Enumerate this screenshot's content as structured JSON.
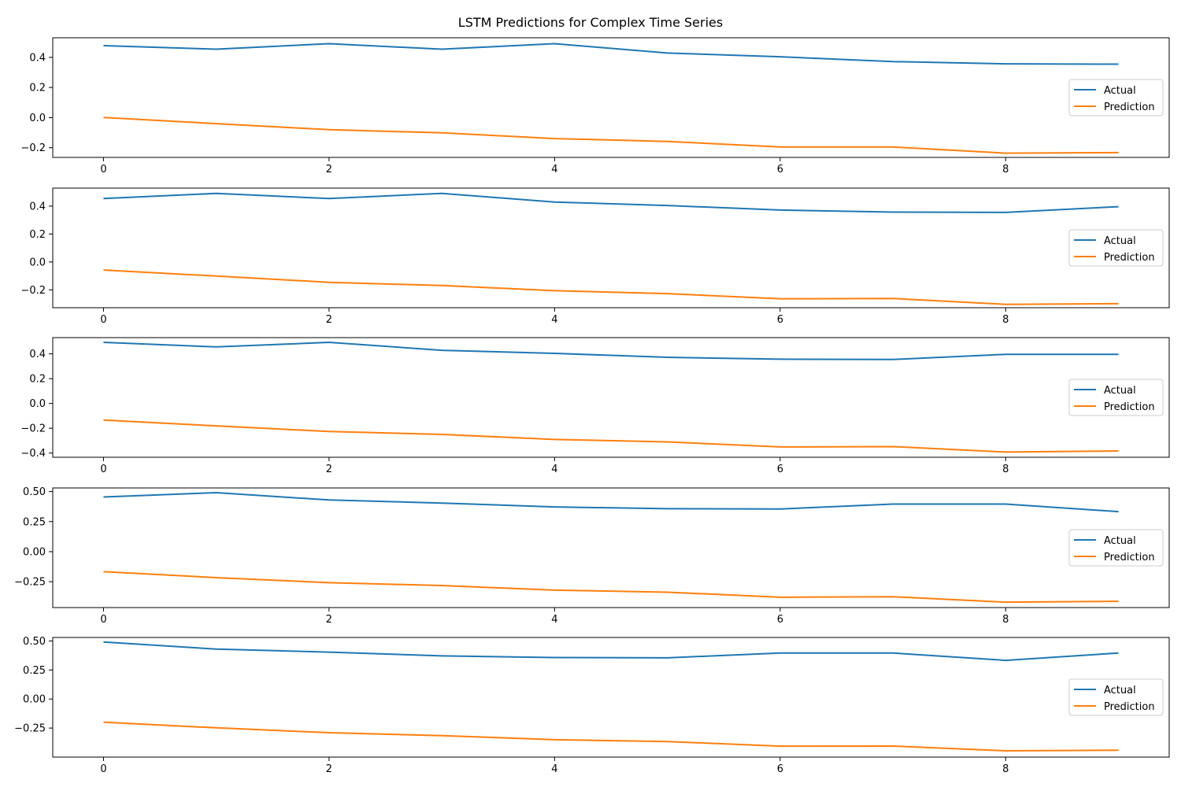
{
  "figure": {
    "title": "LSTM Predictions for Complex Time Series"
  },
  "colors": {
    "actual": "#1f77b4",
    "prediction": "#ff7f0e",
    "axes": "#000000",
    "legend_border": "#cccccc"
  },
  "chart_data": [
    {
      "type": "line",
      "x": [
        0,
        1,
        2,
        3,
        4,
        5,
        6,
        7,
        8,
        9
      ],
      "xticks": [
        0,
        2,
        4,
        6,
        8
      ],
      "xlim": [
        -0.45,
        9.45
      ],
      "yticks": [
        -0.2,
        0.0,
        0.2,
        0.4
      ],
      "ytick_labels": [
        "−0.2",
        "0.0",
        "0.2",
        "0.4"
      ],
      "ylim": [
        -0.264,
        0.53
      ],
      "legend_position": "center-right",
      "series": [
        {
          "name": "Actual",
          "color": "#1f77b4",
          "values": [
            0.478,
            0.454,
            0.491,
            0.454,
            0.491,
            0.429,
            0.404,
            0.372,
            0.357,
            0.355
          ]
        },
        {
          "name": "Prediction",
          "color": "#ff7f0e",
          "values": [
            0.001,
            -0.04,
            -0.08,
            -0.101,
            -0.139,
            -0.158,
            -0.195,
            -0.195,
            -0.236,
            -0.232
          ]
        }
      ]
    },
    {
      "type": "line",
      "x": [
        0,
        1,
        2,
        3,
        4,
        5,
        6,
        7,
        8,
        9
      ],
      "xticks": [
        0,
        2,
        4,
        6,
        8
      ],
      "xlim": [
        -0.45,
        9.45
      ],
      "yticks": [
        -0.2,
        0.0,
        0.2,
        0.4
      ],
      "ytick_labels": [
        "−0.2",
        "0.0",
        "0.2",
        "0.4"
      ],
      "ylim": [
        -0.328,
        0.529
      ],
      "legend_position": "center-right",
      "series": [
        {
          "name": "Actual",
          "color": "#1f77b4",
          "values": [
            0.454,
            0.491,
            0.454,
            0.491,
            0.429,
            0.404,
            0.372,
            0.357,
            0.355,
            0.396
          ]
        },
        {
          "name": "Prediction",
          "color": "#ff7f0e",
          "values": [
            -0.058,
            -0.101,
            -0.146,
            -0.169,
            -0.206,
            -0.227,
            -0.264,
            -0.262,
            -0.304,
            -0.299
          ]
        }
      ]
    },
    {
      "type": "line",
      "x": [
        0,
        1,
        2,
        3,
        4,
        5,
        6,
        7,
        8,
        9
      ],
      "xticks": [
        0,
        2,
        4,
        6,
        8
      ],
      "xlim": [
        -0.45,
        9.45
      ],
      "yticks": [
        -0.4,
        -0.2,
        0.0,
        0.2,
        0.4
      ],
      "ytick_labels": [
        "−0.4",
        "−0.2",
        "0.0",
        "0.2",
        "0.4"
      ],
      "ylim": [
        -0.434,
        0.531
      ],
      "legend_position": "center-right",
      "series": [
        {
          "name": "Actual",
          "color": "#1f77b4",
          "values": [
            0.493,
            0.456,
            0.493,
            0.429,
            0.404,
            0.372,
            0.357,
            0.355,
            0.396,
            0.396
          ]
        },
        {
          "name": "Prediction",
          "color": "#ff7f0e",
          "values": [
            -0.134,
            -0.181,
            -0.226,
            -0.25,
            -0.29,
            -0.31,
            -0.351,
            -0.348,
            -0.392,
            -0.383
          ]
        }
      ]
    },
    {
      "type": "line",
      "x": [
        0,
        1,
        2,
        3,
        4,
        5,
        6,
        7,
        8,
        9
      ],
      "xticks": [
        0,
        2,
        4,
        6,
        8
      ],
      "xlim": [
        -0.45,
        9.45
      ],
      "yticks": [
        -0.25,
        0.0,
        0.25,
        0.5
      ],
      "ytick_labels": [
        "−0.25",
        "0.00",
        "0.25",
        "0.50"
      ],
      "ylim": [
        -0.465,
        0.53
      ],
      "legend_position": "center-right",
      "series": [
        {
          "name": "Actual",
          "color": "#1f77b4",
          "values": [
            0.455,
            0.491,
            0.43,
            0.404,
            0.372,
            0.357,
            0.355,
            0.396,
            0.396,
            0.333
          ]
        },
        {
          "name": "Prediction",
          "color": "#ff7f0e",
          "values": [
            -0.166,
            -0.216,
            -0.258,
            -0.282,
            -0.32,
            -0.337,
            -0.379,
            -0.375,
            -0.42,
            -0.413
          ]
        }
      ]
    },
    {
      "type": "line",
      "x": [
        0,
        1,
        2,
        3,
        4,
        5,
        6,
        7,
        8,
        9
      ],
      "xticks": [
        0,
        2,
        4,
        6,
        8
      ],
      "xlim": [
        -0.45,
        9.45
      ],
      "yticks": [
        -0.25,
        0.0,
        0.25,
        0.5
      ],
      "ytick_labels": [
        "−0.25",
        "0.00",
        "0.25",
        "0.50"
      ],
      "ylim": [
        -0.5,
        0.53
      ],
      "legend_position": "center-right",
      "series": [
        {
          "name": "Actual",
          "color": "#1f77b4",
          "values": [
            0.491,
            0.43,
            0.404,
            0.372,
            0.357,
            0.355,
            0.396,
            0.396,
            0.333,
            0.396
          ]
        },
        {
          "name": "Prediction",
          "color": "#ff7f0e",
          "values": [
            -0.199,
            -0.248,
            -0.29,
            -0.315,
            -0.35,
            -0.366,
            -0.406,
            -0.405,
            -0.446,
            -0.441
          ]
        }
      ]
    }
  ]
}
